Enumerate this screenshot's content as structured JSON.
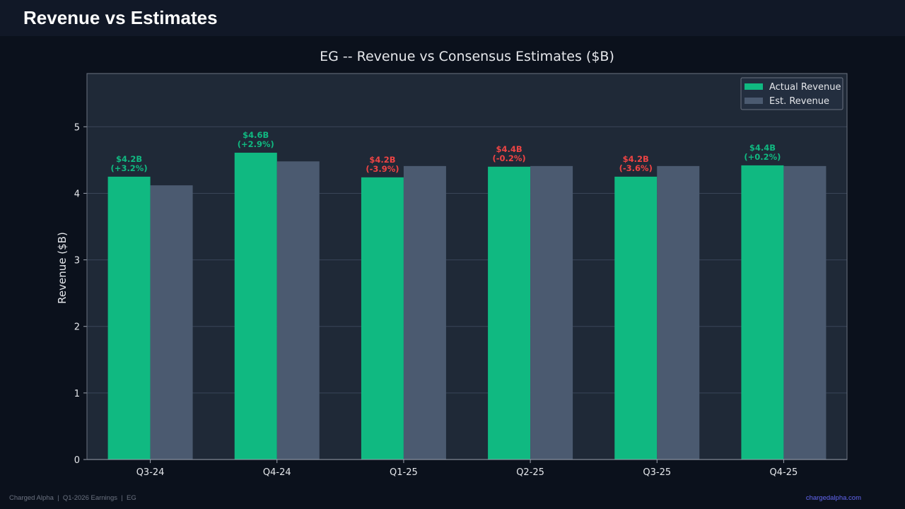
{
  "header": {
    "title": "Revenue vs Estimates"
  },
  "footer": {
    "left_text": "Charged Alpha  |  Q1-2026 Earnings  |  EG",
    "right_text": "chargedalpha.com"
  },
  "colors": {
    "actual": "#10b981",
    "estimate": "#4b5a70",
    "beat_label": "#10b981",
    "miss_label": "#ef4444",
    "plot_bg": "#1f2937",
    "grid": "#3a4658",
    "axis_text": "#e5e7eb"
  },
  "chart_data": {
    "type": "bar",
    "title": "EG -- Revenue vs Consensus Estimates ($B)",
    "xlabel": "",
    "ylabel": "Revenue ($B)",
    "ylim": [
      0,
      5.8
    ],
    "yticks": [
      0,
      1,
      2,
      3,
      4,
      5
    ],
    "grid": true,
    "legend_position": "top-right",
    "categories": [
      "Q3-24",
      "Q4-24",
      "Q1-25",
      "Q2-25",
      "Q3-25",
      "Q4-25"
    ],
    "series": [
      {
        "name": "Actual Revenue",
        "values": [
          4.25,
          4.61,
          4.24,
          4.4,
          4.25,
          4.42
        ]
      },
      {
        "name": "Est. Revenue",
        "values": [
          4.12,
          4.48,
          4.41,
          4.41,
          4.41,
          4.41
        ]
      }
    ],
    "bar_labels": [
      {
        "value": "$4.2B",
        "surprise": "(+3.2%)",
        "beat": true
      },
      {
        "value": "$4.6B",
        "surprise": "(+2.9%)",
        "beat": true
      },
      {
        "value": "$4.2B",
        "surprise": "(-3.9%)",
        "beat": false
      },
      {
        "value": "$4.4B",
        "surprise": "(-0.2%)",
        "beat": false
      },
      {
        "value": "$4.2B",
        "surprise": "(-3.6%)",
        "beat": false
      },
      {
        "value": "$4.4B",
        "surprise": "(+0.2%)",
        "beat": true
      }
    ]
  }
}
